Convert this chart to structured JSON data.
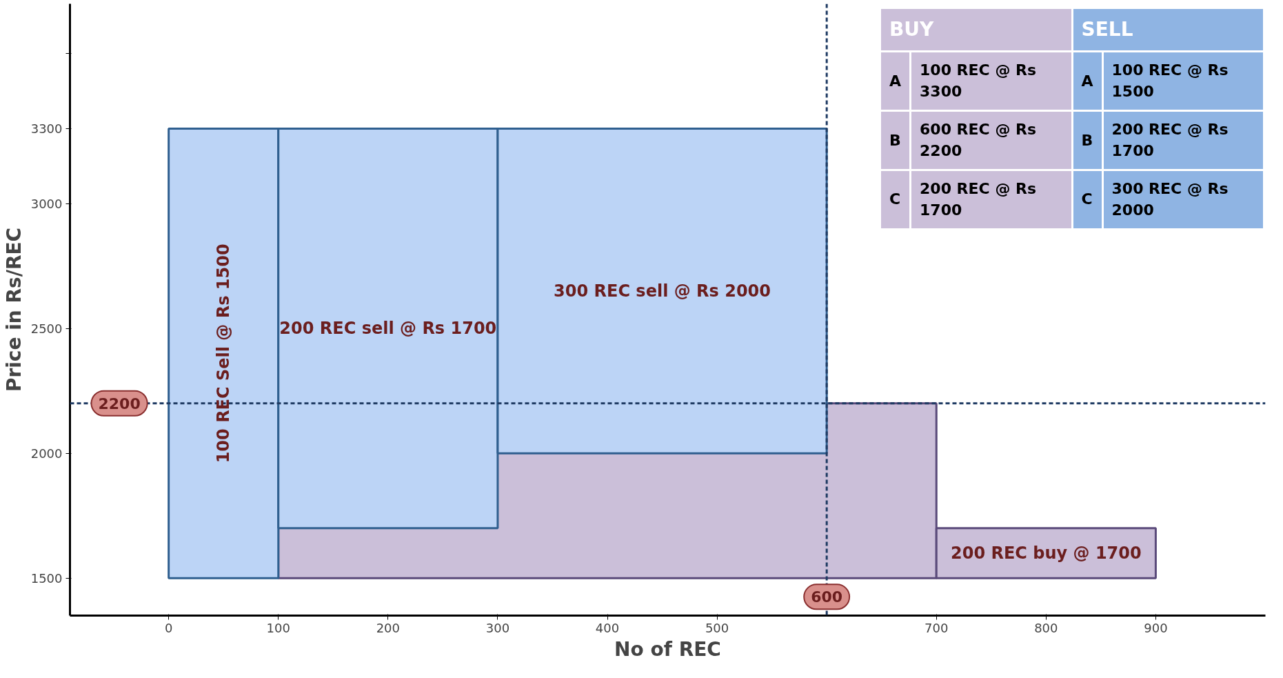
{
  "chart_data": {
    "type": "bar",
    "xlabel": "No of REC",
    "ylabel": "Price in Rs/REC",
    "series": [
      {
        "x": [
          50,
          200,
          450
        ],
        "base": [
          1500,
          1700,
          2000
        ],
        "values": [
          1800,
          1600,
          1300
        ],
        "color": "#bcd4f6"
      },
      {
        "x": [
          400,
          800
        ],
        "base": [
          1500,
          1500
        ],
        "values": [
          700,
          200
        ],
        "color": "#cbbfd9"
      }
    ],
    "xlim": [
      -90,
      1000
    ],
    "ylim": [
      1350,
      3800
    ],
    "xticks": [
      0,
      100,
      200,
      300,
      400,
      500,
      700,
      800,
      900
    ],
    "yticks": [
      1500,
      2000,
      2500,
      3000,
      3300,
      {
        "value": 3600,
        "label": null
      }
    ],
    "ref_lines": [
      {
        "axis": "y",
        "value": 2200,
        "label": "2200",
        "line_style": "dashed",
        "color": "#1f3b63"
      },
      {
        "axis": "x",
        "value": 600,
        "label": "600",
        "line_style": "dashed",
        "color": "#1f3b63"
      }
    ],
    "annotations": [
      "100 REC Sell @ Rs 1500",
      "200 REC sell @ Rs 1700",
      "300 REC sell @ Rs 2000",
      "200 REC buy @ 1700",
      "BUY",
      "SELL",
      "A",
      "100 REC @ Rs 3300",
      "A",
      "100 REC @ Rs 1500",
      "B",
      "600 REC @ Rs 2200",
      "B",
      "200 REC @ Rs 1700",
      "C",
      "200 REC @ Rs 1700",
      "C",
      "300 REC @ Rs 2000"
    ],
    "grid": false
  }
}
